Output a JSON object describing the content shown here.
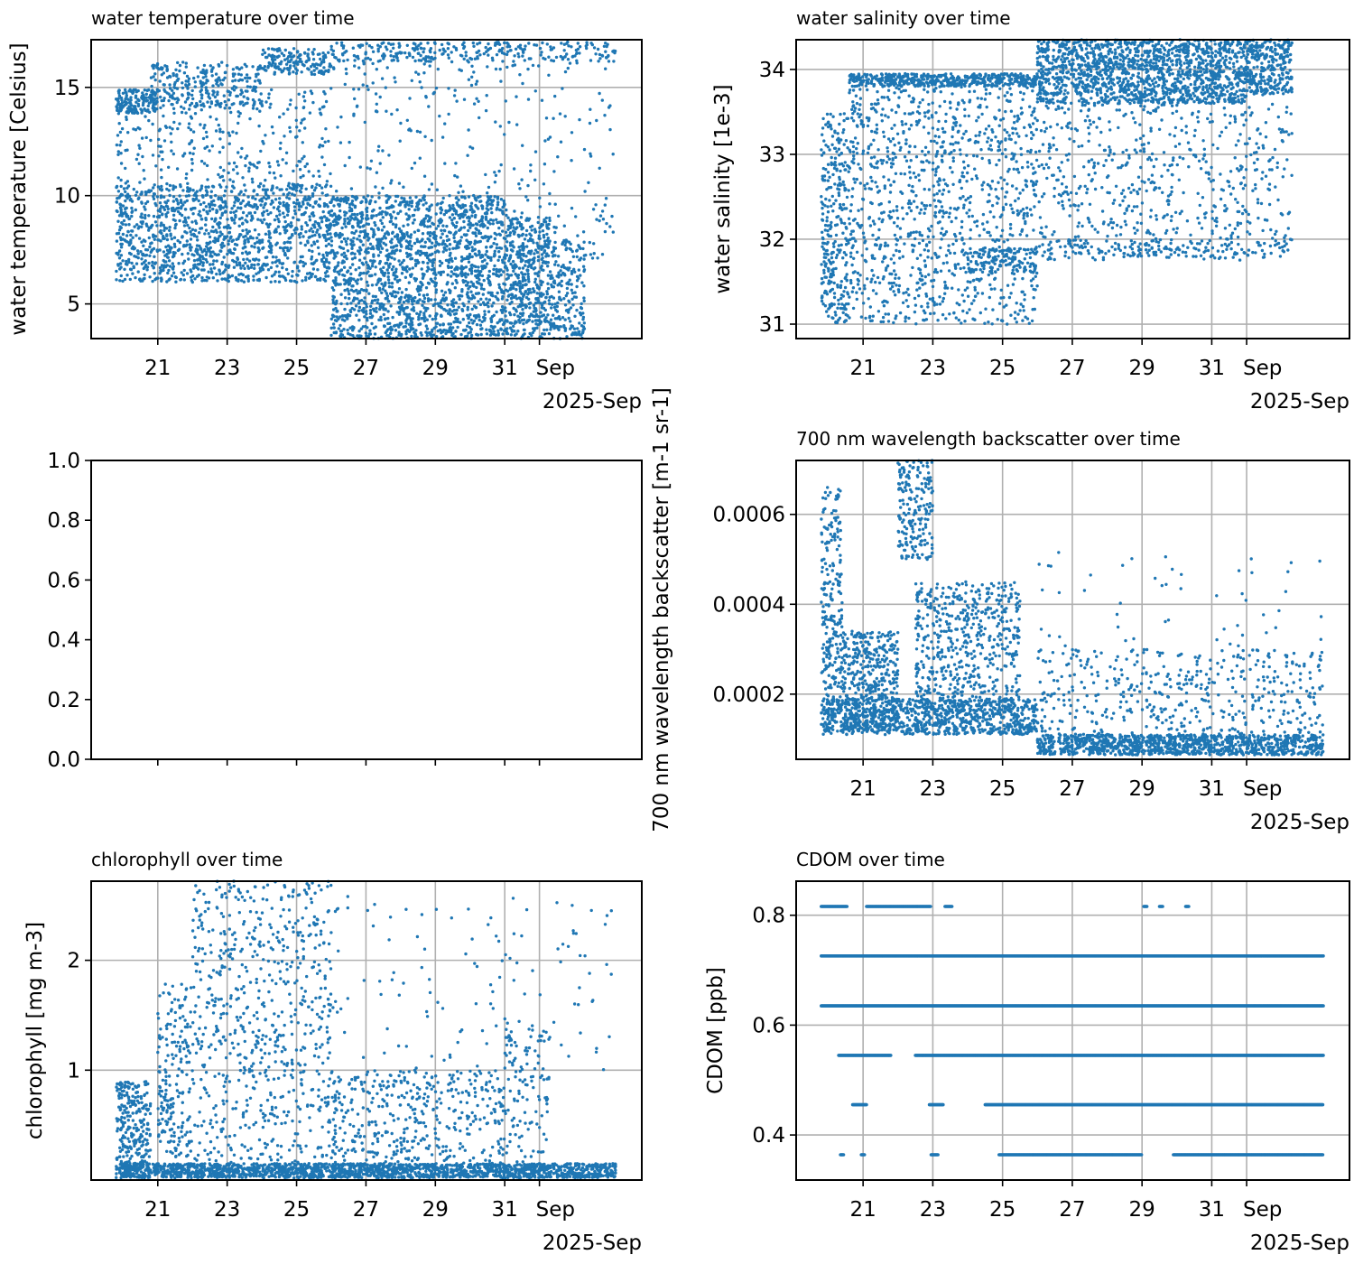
{
  "colors": {
    "series": "#1f77b4",
    "grid": "#b0b0b0",
    "axis": "#000000"
  },
  "chart_data": [
    {
      "type": "scatter",
      "title": "water temperature over time",
      "ylabel": "water temperature [Celsius]",
      "xlabel": "",
      "x_range_days": [
        19.8,
        34.2
      ],
      "ylim": [
        3.4,
        17.2
      ],
      "yticks": [
        5,
        10,
        15
      ],
      "grid": true,
      "x_tick_labels": [
        "21",
        "23",
        "25",
        "27",
        "29",
        "31",
        "Sep"
      ],
      "x_offset_label": "2025-Sep",
      "series": [
        {
          "bands": [
            {
              "x": [
                19.8,
                21.0
              ],
              "y": [
                13.8,
                14.9
              ],
              "n": 150
            },
            {
              "x": [
                19.8,
                26.0
              ],
              "y": [
                6.0,
                10.5
              ],
              "n": 1300
            },
            {
              "x": [
                20.8,
                24.0
              ],
              "y": [
                14.0,
                16.2
              ],
              "n": 260
            },
            {
              "x": [
                24.0,
                26.0
              ],
              "y": [
                15.6,
                16.8
              ],
              "n": 160
            },
            {
              "x": [
                26.0,
                34.2
              ],
              "y": [
                16.2,
                17.1
              ],
              "n": 280
            },
            {
              "x": [
                19.8,
                26.0
              ],
              "y": [
                10.5,
                15.0
              ],
              "n": 320
            },
            {
              "x": [
                26.0,
                31.0
              ],
              "y": [
                3.4,
                10.0
              ],
              "n": 1700
            },
            {
              "x": [
                31.0,
                32.3
              ],
              "y": [
                3.4,
                9.0
              ],
              "n": 450
            },
            {
              "x": [
                32.3,
                33.3
              ],
              "y": [
                3.4,
                8.0
              ],
              "n": 200
            },
            {
              "x": [
                26.0,
                34.2
              ],
              "y": [
                7.0,
                16.5
              ],
              "n": 350
            }
          ]
        }
      ]
    },
    {
      "type": "scatter",
      "title": "water salinity over time",
      "ylabel": "water salinity [1e-3]",
      "xlabel": "",
      "x_range_days": [
        19.8,
        34.2
      ],
      "ylim": [
        30.83,
        34.35
      ],
      "yticks": [
        31,
        32,
        33,
        34
      ],
      "grid": true,
      "x_tick_labels": [
        "21",
        "23",
        "25",
        "27",
        "29",
        "31",
        "Sep"
      ],
      "x_offset_label": "2025-Sep",
      "series": [
        {
          "bands": [
            {
              "x": [
                19.8,
                20.6
              ],
              "y": [
                31.0,
                33.5
              ],
              "n": 300
            },
            {
              "x": [
                20.6,
                26.0
              ],
              "y": [
                33.8,
                33.95
              ],
              "n": 500
            },
            {
              "x": [
                20.6,
                26.0
              ],
              "y": [
                31.0,
                33.8
              ],
              "n": 1100
            },
            {
              "x": [
                24.0,
                26.0
              ],
              "y": [
                31.6,
                31.9
              ],
              "n": 150
            },
            {
              "x": [
                26.0,
                32.0
              ],
              "y": [
                33.6,
                34.35
              ],
              "n": 1500
            },
            {
              "x": [
                32.0,
                33.3
              ],
              "y": [
                33.7,
                34.35
              ],
              "n": 300
            },
            {
              "x": [
                26.0,
                33.3
              ],
              "y": [
                31.8,
                33.6
              ],
              "n": 600
            },
            {
              "x": [
                26.0,
                33.3
              ],
              "y": [
                31.75,
                32.0
              ],
              "n": 150
            }
          ]
        }
      ]
    },
    {
      "type": "scatter",
      "title": "",
      "ylabel": "",
      "xlabel": "",
      "empty": true,
      "ylim": [
        0.0,
        1.0
      ],
      "yticks": [
        0.0,
        0.2,
        0.4,
        0.6,
        0.8,
        1.0
      ],
      "grid": false,
      "y_tick_labels": [
        "0.0",
        "0.2",
        "0.4",
        "0.6",
        "0.8",
        "1.0"
      ],
      "series": []
    },
    {
      "type": "scatter",
      "title": "700 nm wavelength backscatter over time",
      "ylabel": "700 nm wavelength backscatter [m-1 sr-1]",
      "xlabel": "",
      "x_range_days": [
        19.8,
        34.2
      ],
      "ylim": [
        5.5e-05,
        0.00072
      ],
      "yticks": [
        0.0002,
        0.0004,
        0.0006
      ],
      "grid": true,
      "y_tick_labels": [
        "0.0002",
        "0.0004",
        "0.0006"
      ],
      "x_tick_labels": [
        "21",
        "23",
        "25",
        "27",
        "29",
        "31",
        "Sep"
      ],
      "x_offset_label": "2025-Sep",
      "series": [
        {
          "bands": [
            {
              "x": [
                19.8,
                26.0
              ],
              "y": [
                0.00011,
                0.00019
              ],
              "n": 900
            },
            {
              "x": [
                19.8,
                20.4
              ],
              "y": [
                0.00015,
                0.00066
              ],
              "n": 250
            },
            {
              "x": [
                20.4,
                22.0
              ],
              "y": [
                0.00012,
                0.00034
              ],
              "n": 400
            },
            {
              "x": [
                22.0,
                23.0
              ],
              "y": [
                0.0005,
                0.00072
              ],
              "n": 200
            },
            {
              "x": [
                22.5,
                25.5
              ],
              "y": [
                0.00015,
                0.00045
              ],
              "n": 600
            },
            {
              "x": [
                26.0,
                34.2
              ],
              "y": [
                6.5e-05,
                0.00011
              ],
              "n": 1100
            },
            {
              "x": [
                26.0,
                34.2
              ],
              "y": [
                0.00011,
                0.0003
              ],
              "n": 450
            },
            {
              "x": [
                26.0,
                34.2
              ],
              "y": [
                0.0003,
                0.00052
              ],
              "n": 50
            }
          ]
        }
      ]
    },
    {
      "type": "scatter",
      "title": "chlorophyll over time",
      "ylabel": "chlorophyll [mg m-3]",
      "xlabel": "",
      "x_range_days": [
        19.8,
        34.2
      ],
      "ylim": [
        0.0,
        2.72
      ],
      "yticks": [
        1,
        2
      ],
      "grid": true,
      "x_tick_labels": [
        "21",
        "23",
        "25",
        "27",
        "29",
        "31",
        "Sep"
      ],
      "x_offset_label": "2025-Sep",
      "series": [
        {
          "bands": [
            {
              "x": [
                19.8,
                34.2
              ],
              "y": [
                0.02,
                0.15
              ],
              "n": 1800
            },
            {
              "x": [
                19.8,
                20.8
              ],
              "y": [
                0.1,
                0.9
              ],
              "n": 250
            },
            {
              "x": [
                21.0,
                22.0
              ],
              "y": [
                0.2,
                1.8
              ],
              "n": 200
            },
            {
              "x": [
                22.0,
                26.0
              ],
              "y": [
                0.15,
                2.72
              ],
              "n": 700
            },
            {
              "x": [
                26.0,
                31.0
              ],
              "y": [
                0.1,
                1.0
              ],
              "n": 450
            },
            {
              "x": [
                26.0,
                34.2
              ],
              "y": [
                1.0,
                2.6
              ],
              "n": 120
            },
            {
              "x": [
                31.0,
                32.3
              ],
              "y": [
                0.1,
                1.5
              ],
              "n": 120
            }
          ]
        }
      ]
    },
    {
      "type": "scatter",
      "title": "CDOM over time",
      "ylabel": "CDOM [ppb]",
      "xlabel": "",
      "x_range_days": [
        19.8,
        34.2
      ],
      "ylim": [
        0.318,
        0.862
      ],
      "yticks": [
        0.4,
        0.6,
        0.8
      ],
      "grid": true,
      "y_tick_labels": [
        "0.4",
        "0.6",
        "0.8"
      ],
      "x_tick_labels": [
        "21",
        "23",
        "25",
        "27",
        "29",
        "31",
        "Sep"
      ],
      "x_offset_label": "2025-Sep",
      "levels": [
        {
          "y": 0.816,
          "segments": [
            [
              19.8,
              20.55
            ],
            [
              21.1,
              22.95
            ],
            [
              23.35,
              23.55
            ],
            [
              29.05,
              29.15
            ],
            [
              29.5,
              29.6
            ],
            [
              30.25,
              30.35
            ]
          ]
        },
        {
          "y": 0.726,
          "segments": [
            [
              19.8,
              34.2
            ]
          ]
        },
        {
          "y": 0.635,
          "segments": [
            [
              19.8,
              34.2
            ]
          ]
        },
        {
          "y": 0.545,
          "segments": [
            [
              20.3,
              21.8
            ],
            [
              22.5,
              34.2
            ]
          ]
        },
        {
          "y": 0.455,
          "segments": [
            [
              20.7,
              21.1
            ],
            [
              22.9,
              23.3
            ],
            [
              24.5,
              34.2
            ]
          ]
        },
        {
          "y": 0.364,
          "segments": [
            [
              20.35,
              20.45
            ],
            [
              20.95,
              21.05
            ],
            [
              22.95,
              23.15
            ],
            [
              24.9,
              29.0
            ],
            [
              29.9,
              34.2
            ]
          ]
        }
      ]
    }
  ]
}
